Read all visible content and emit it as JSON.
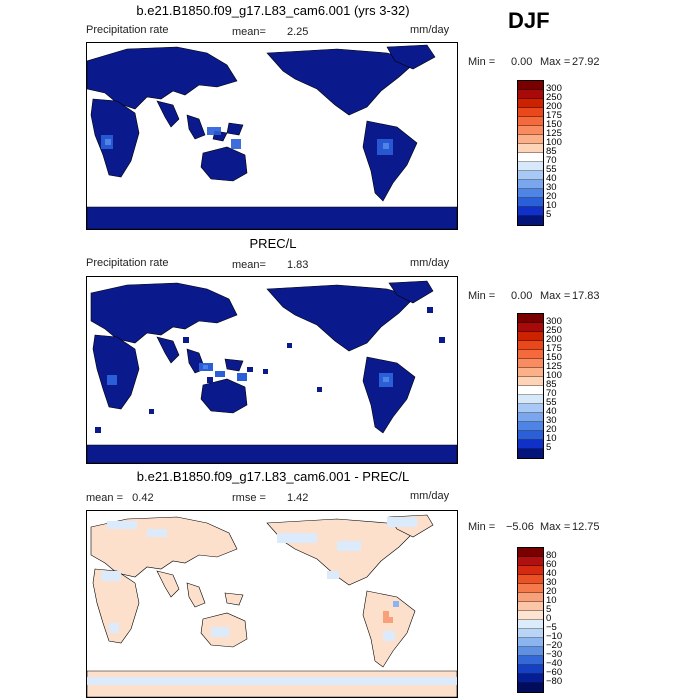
{
  "season": "DJF",
  "panels": [
    {
      "title": "b.e21.B1850.f09_g17.L83_cam6.001 (yrs 3-32)",
      "left_label": "Precipitation rate",
      "stat_label": "mean=",
      "stat_value": "2.25",
      "units": "mm/day",
      "min_label": "Min =",
      "min_value": "0.00",
      "max_label": "Max =",
      "max_value": "27.92",
      "levels": [
        "300",
        "250",
        "200",
        "175",
        "150",
        "125",
        "100",
        "85",
        "70",
        "55",
        "40",
        "30",
        "20",
        "10",
        "5"
      ]
    },
    {
      "title": "PREC/L",
      "left_label": "Precipitation rate",
      "stat_label": "mean=",
      "stat_value": "1.83",
      "units": "mm/day",
      "min_label": "Min =",
      "min_value": "0.00",
      "max_label": "Max =",
      "max_value": "17.83",
      "levels": [
        "300",
        "250",
        "200",
        "175",
        "150",
        "125",
        "100",
        "85",
        "70",
        "55",
        "40",
        "30",
        "20",
        "10",
        "5"
      ]
    },
    {
      "title": "b.e21.B1850.f09_g17.L83_cam6.001 - PREC/L",
      "left_label": "mean =   0.42",
      "stat_label": "rmse =",
      "stat_value": "1.42",
      "units": "mm/day",
      "min_label": "Min =",
      "min_value": "−5.06",
      "max_label": "Max =",
      "max_value": "12.75",
      "levels": [
        "80",
        "60",
        "40",
        "30",
        "20",
        "10",
        "5",
        "0",
        "−5",
        "−10",
        "−20",
        "−30",
        "−40",
        "−60",
        "−80"
      ]
    }
  ],
  "colors": {
    "abs_scale": [
      "#7a0000",
      "#a80a0a",
      "#cc2200",
      "#e8481c",
      "#f46a3c",
      "#f88c60",
      "#fbb08a",
      "#fdd4b8",
      "#ffffff",
      "#d8e8fb",
      "#a8c8f5",
      "#7aa6ee",
      "#4d84e6",
      "#2a5fd8",
      "#1030c8",
      "#03157a"
    ],
    "diff_scale": [
      "#7a0000",
      "#b01010",
      "#d42a10",
      "#ea5226",
      "#f47a4c",
      "#f8a07a",
      "#fbc6a8",
      "#fde4d2",
      "#dcecfb",
      "#b8d4f6",
      "#8cb4ee",
      "#5e90e4",
      "#3468d6",
      "#1640c4",
      "#051e94",
      "#020c5c"
    ],
    "land_wet": "#0a1a8c",
    "land_dry": "#0d1f9a",
    "diff_land": "#fde0cc",
    "diff_land_neg": "#dcebfb"
  }
}
